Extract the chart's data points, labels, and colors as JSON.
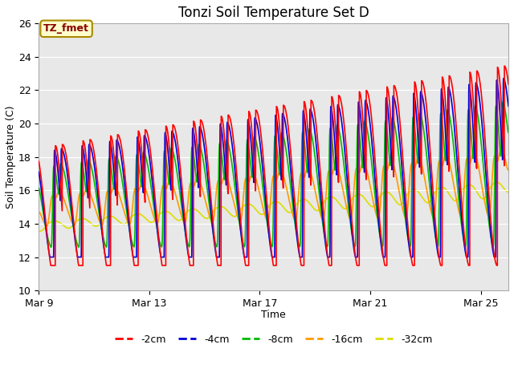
{
  "title": "Tonzi Soil Temperature Set D",
  "xlabel": "Time",
  "ylabel": "Soil Temperature (C)",
  "ylim": [
    10,
    26
  ],
  "x_tick_positions": [
    0,
    4,
    8,
    12,
    16
  ],
  "x_tick_labels": [
    "Mar 9",
    "Mar 13",
    "Mar 17",
    "Mar 21",
    "Mar 25"
  ],
  "plot_bg_color": "#e8e8e8",
  "fig_bg_color": "#ffffff",
  "annotation_text": "TZ_fmet",
  "annotation_bg": "#ffffcc",
  "annotation_border": "#aa8800",
  "legend_entries": [
    "-2cm",
    "-4cm",
    "-8cm",
    "-16cm",
    "-32cm"
  ],
  "line_colors": [
    "#ff0000",
    "#0000dd",
    "#00bb00",
    "#ff9900",
    "#dddd00"
  ],
  "line_width": 1.2,
  "title_fontsize": 12,
  "label_fontsize": 9,
  "tick_fontsize": 9
}
